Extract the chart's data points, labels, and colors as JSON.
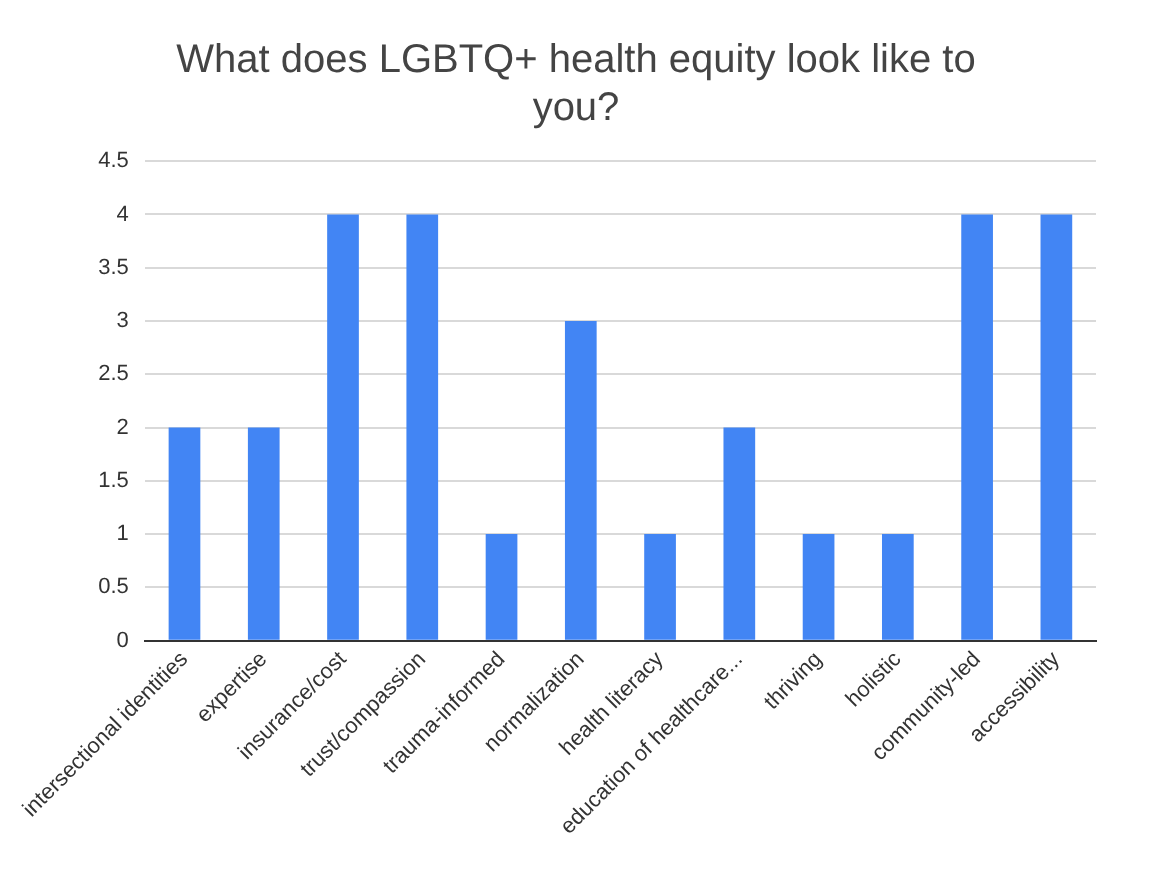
{
  "chart_data": {
    "type": "bar",
    "title": "What does LGBTQ+ health equity look like to you?",
    "categories": [
      "intersectional identities",
      "expertise",
      "insurance/cost",
      "trust/compassion",
      "trauma-informed",
      "normalization",
      "health literacy",
      "education of healthcare...",
      "thriving",
      "holistic",
      "community-led",
      "accessibility"
    ],
    "values": [
      2,
      2,
      4,
      4,
      1,
      3,
      1,
      2,
      1,
      1,
      4,
      4
    ],
    "color": "#4285f4",
    "ylim": [
      0,
      4.5
    ],
    "yticks": [
      0,
      0.5,
      1,
      1.5,
      2,
      2.5,
      3,
      3.5,
      4,
      4.5
    ],
    "grid": "y",
    "legend": false
  }
}
